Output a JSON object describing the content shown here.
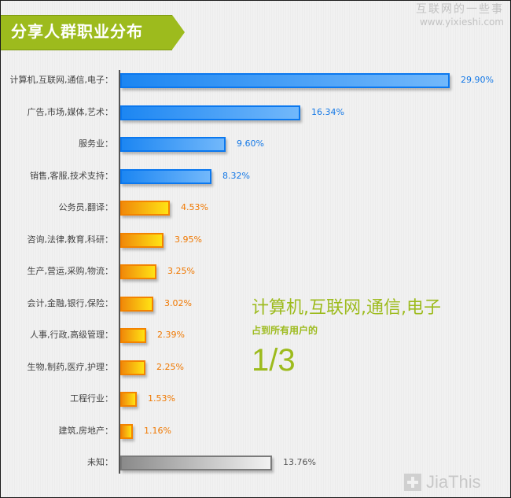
{
  "header": {
    "title": "分享人群职业分布",
    "watermark_line1": "互联网的一些事",
    "watermark_line2": "www.yixieshi.com"
  },
  "colors": {
    "accent_green": "#9dbb1d",
    "bar_blue": "#1c86f2",
    "bar_orange": "#f38300",
    "bar_gray": "#8a8a8a",
    "value_blue": "#1478e6",
    "value_orange": "#f07800",
    "value_gray": "#555555"
  },
  "callout": {
    "line1": "计算机,互联网,通信,电子",
    "line2": "占到所有用户的",
    "line3": "1/3"
  },
  "footer": {
    "logo_text": "JiaThis",
    "logo_icon": "plus-square-icon"
  },
  "chart_data": {
    "type": "bar",
    "orientation": "horizontal",
    "title": "分享人群职业分布",
    "xlabel": "",
    "ylabel": "",
    "unit": "%",
    "grid": false,
    "categories": [
      "计算机,互联网,通信,电子",
      "广告,市场,媒体,艺术",
      "服务业",
      "销售,客服,技术支持",
      "公务员,翻译",
      "咨询,法律,教育,科研",
      "生产,营运,采购,物流",
      "会计,金融,银行,保险",
      "人事,行政,高级管理",
      "生物,制药,医疗,护理",
      "工程行业",
      "建筑,房地产",
      "未知"
    ],
    "values": [
      29.9,
      16.34,
      9.6,
      8.32,
      4.53,
      3.95,
      3.25,
      3.02,
      2.39,
      2.25,
      1.53,
      1.16,
      13.76
    ],
    "labels": [
      "29.90%",
      "16.34%",
      "9.60%",
      "8.32%",
      "4.53%",
      "3.95%",
      "3.25%",
      "3.02%",
      "2.39%",
      "2.25%",
      "1.53%",
      "1.16%",
      "13.76%"
    ],
    "bar_colors": [
      "blue",
      "blue",
      "blue",
      "blue",
      "orange",
      "orange",
      "orange",
      "orange",
      "orange",
      "orange",
      "orange",
      "orange",
      "gray"
    ],
    "annotation": "计算机,互联网,通信,电子 占到所有用户的 1/3"
  }
}
